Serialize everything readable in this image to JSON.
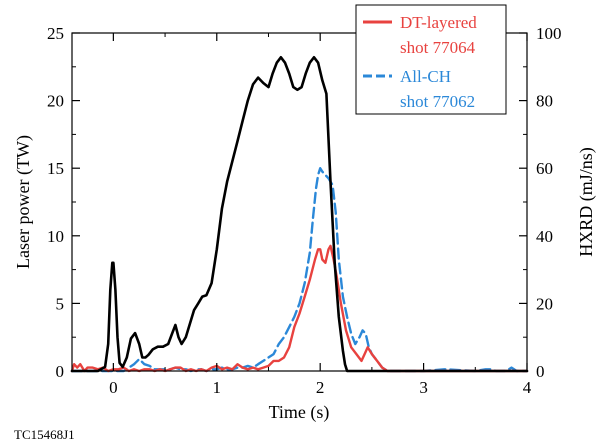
{
  "figure_id": "TC15468J1",
  "chart_data": {
    "type": "line",
    "xlabel": "Time (s)",
    "ylabel_left": "Laser power (TW)",
    "ylabel_right": "HXRD (mJ/ns)",
    "xlim": [
      -0.4,
      4
    ],
    "ylim_left": [
      0,
      25
    ],
    "ylim_right": [
      0,
      100
    ],
    "x_ticks": [
      0,
      1,
      2,
      3,
      4
    ],
    "y_ticks_left": [
      0,
      5,
      10,
      15,
      20,
      25
    ],
    "y_ticks_right": [
      0,
      20,
      40,
      60,
      80,
      100
    ],
    "grid": false,
    "legend_position": "top-right",
    "legend": [
      {
        "label_lines": [
          "DT-layered",
          "shot 77064"
        ],
        "color": "#e8423f",
        "dash": "solid"
      },
      {
        "label_lines": [
          "All-CH",
          "shot 77062"
        ],
        "color": "#2b88d8",
        "dash": "dashed"
      }
    ],
    "series": [
      {
        "axis": "left",
        "color": "#000000",
        "dash": "solid",
        "x": [
          -0.4,
          -0.15,
          -0.08,
          -0.05,
          -0.03,
          -0.01,
          0.0,
          0.02,
          0.04,
          0.06,
          0.09,
          0.13,
          0.17,
          0.21,
          0.25,
          0.28,
          0.31,
          0.34,
          0.38,
          0.43,
          0.48,
          0.53,
          0.57,
          0.6,
          0.63,
          0.66,
          0.7,
          0.74,
          0.78,
          0.82,
          0.86,
          0.9,
          0.95,
          1.0,
          1.05,
          1.1,
          1.15,
          1.2,
          1.25,
          1.3,
          1.35,
          1.4,
          1.45,
          1.5,
          1.54,
          1.58,
          1.62,
          1.66,
          1.7,
          1.74,
          1.78,
          1.82,
          1.86,
          1.9,
          1.94,
          1.98,
          2.02,
          2.06,
          2.1,
          2.14,
          2.18,
          2.22,
          2.24,
          2.26,
          2.28,
          2.3,
          2.32,
          2.36,
          2.42,
          4.0
        ],
        "y": [
          0,
          0,
          0.3,
          2.0,
          6.0,
          8.0,
          8.0,
          6.0,
          2.5,
          0.6,
          0.3,
          1.0,
          2.4,
          2.8,
          2.0,
          1.0,
          1.0,
          1.2,
          1.6,
          1.8,
          1.8,
          2.0,
          2.8,
          3.4,
          2.5,
          2.0,
          2.5,
          3.5,
          4.5,
          5.0,
          5.5,
          5.6,
          6.5,
          9.0,
          12.0,
          14.0,
          15.5,
          17.0,
          18.5,
          20.0,
          21.2,
          21.7,
          21.3,
          21.0,
          22.0,
          22.8,
          23.2,
          22.8,
          22.0,
          21.0,
          20.8,
          21.0,
          22.0,
          22.8,
          23.2,
          22.8,
          21.5,
          20.5,
          14.0,
          8.0,
          4.0,
          1.5,
          0.5,
          0,
          0,
          0,
          0,
          0,
          0,
          0
        ]
      },
      {
        "axis": "right",
        "color": "#e8423f",
        "dash": "solid",
        "name": "DT-layered shot 77064",
        "x": [
          -0.4,
          -0.38,
          -0.35,
          -0.32,
          -0.28,
          -0.25,
          -0.2,
          -0.15,
          -0.1,
          -0.05,
          0.0,
          0.05,
          0.1,
          0.15,
          0.2,
          0.25,
          0.3,
          0.35,
          0.4,
          0.45,
          0.5,
          0.55,
          0.6,
          0.65,
          0.7,
          0.75,
          0.8,
          0.85,
          0.9,
          0.95,
          1.0,
          1.05,
          1.1,
          1.15,
          1.2,
          1.25,
          1.3,
          1.35,
          1.4,
          1.45,
          1.5,
          1.55,
          1.6,
          1.65,
          1.7,
          1.75,
          1.8,
          1.85,
          1.9,
          1.95,
          1.98,
          2.0,
          2.02,
          2.05,
          2.08,
          2.1,
          2.13,
          2.16,
          2.2,
          2.25,
          2.3,
          2.35,
          2.4,
          2.43,
          2.46,
          2.5,
          2.55,
          2.6,
          2.65,
          2.7,
          4.0
        ],
        "y": [
          0,
          2,
          1,
          2,
          0,
          1,
          1,
          0.5,
          1,
          0,
          0.5,
          0.5,
          1,
          0,
          0.5,
          0,
          0.5,
          0.5,
          0,
          0.5,
          0,
          0.5,
          1,
          1,
          0,
          0.5,
          0,
          0.5,
          0,
          1,
          1.5,
          0.5,
          1,
          0.5,
          2,
          1,
          0.5,
          1,
          0.5,
          1,
          1.5,
          3,
          3,
          4,
          7,
          13,
          17,
          22,
          27,
          33,
          36,
          36,
          33,
          32,
          36,
          37,
          33,
          28,
          20,
          12,
          7,
          5,
          3,
          5,
          7,
          5,
          3,
          1,
          0,
          0,
          0
        ]
      },
      {
        "axis": "right",
        "color": "#2b88d8",
        "dash": "dashed",
        "name": "All-CH shot 77062",
        "x": [
          -0.4,
          -0.3,
          -0.2,
          -0.1,
          0.0,
          0.1,
          0.15,
          0.2,
          0.25,
          0.3,
          0.35,
          0.4,
          0.45,
          0.5,
          0.55,
          0.6,
          0.65,
          0.7,
          0.75,
          0.8,
          0.85,
          0.9,
          0.95,
          1.0,
          1.05,
          1.1,
          1.15,
          1.2,
          1.25,
          1.3,
          1.35,
          1.4,
          1.45,
          1.5,
          1.55,
          1.6,
          1.65,
          1.7,
          1.75,
          1.8,
          1.85,
          1.9,
          1.93,
          1.96,
          1.98,
          2.0,
          2.02,
          2.05,
          2.08,
          2.1,
          2.12,
          2.15,
          2.18,
          2.22,
          2.26,
          2.3,
          2.34,
          2.38,
          2.41,
          2.44,
          2.47,
          2.5,
          2.55,
          2.6,
          2.65,
          2.7,
          3.0,
          3.2,
          3.5,
          3.6,
          3.65,
          3.7,
          3.8,
          3.85,
          3.9,
          4.0
        ],
        "y": [
          0,
          0,
          0,
          0,
          0,
          0,
          1,
          2,
          3.5,
          2,
          1.5,
          0.5,
          0.5,
          0.5,
          0.5,
          1,
          0.5,
          0.5,
          0,
          0.5,
          0.5,
          0,
          0.5,
          0.5,
          1,
          0.5,
          0.5,
          1,
          1,
          1.5,
          1,
          2,
          3,
          4,
          5,
          8,
          10,
          13,
          16,
          20,
          26,
          35,
          45,
          54,
          58,
          60,
          59,
          58,
          57,
          56,
          55,
          47,
          33,
          22,
          16,
          11,
          8,
          10,
          12,
          11,
          7,
          5,
          3,
          1,
          0,
          0,
          0,
          0.5,
          0,
          0.5,
          0.5,
          0,
          0,
          1,
          0,
          0
        ]
      }
    ]
  }
}
